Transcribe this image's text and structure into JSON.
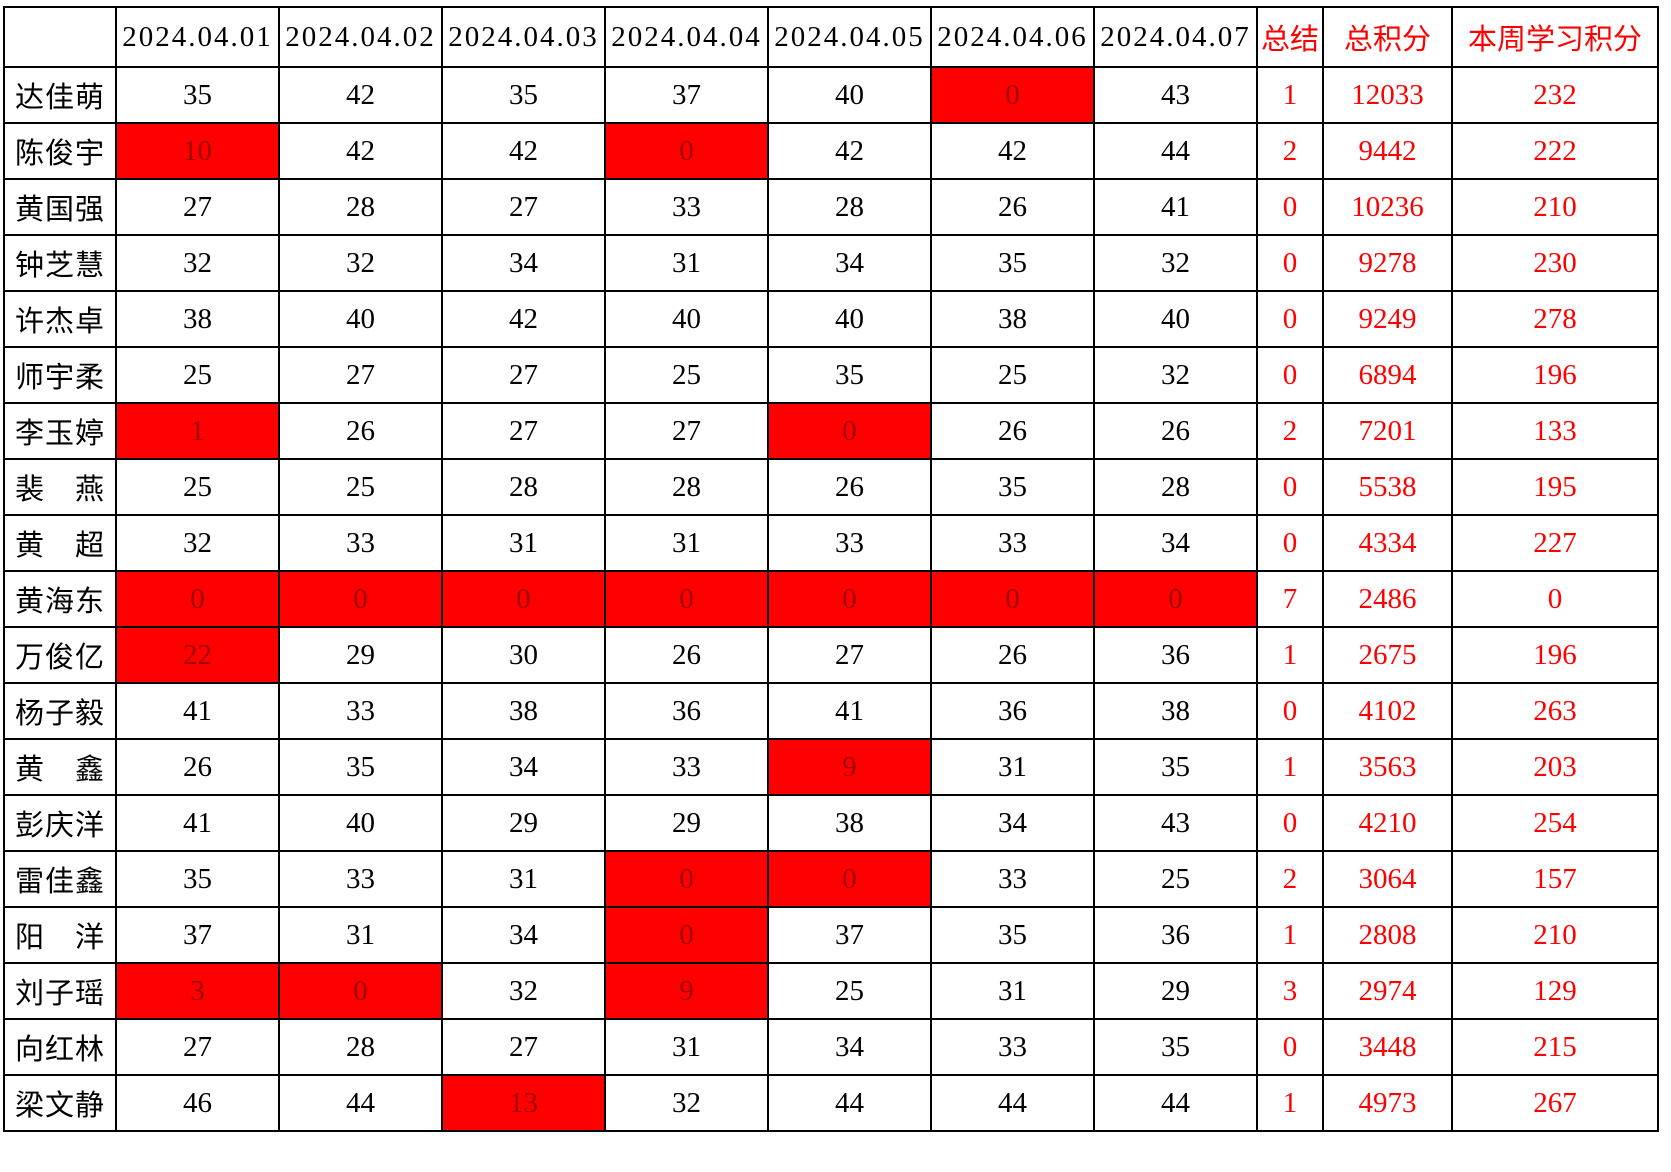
{
  "colors": {
    "accent_text": "#ff0000",
    "highlight_bg": "#ff0000",
    "highlight_text": "#a00000",
    "border": "#000000",
    "text": "#000000"
  },
  "table": {
    "header": {
      "corner": "",
      "date_cols": [
        "2024.04.01",
        "2024.04.02",
        "2024.04.03",
        "2024.04.04",
        "2024.04.05",
        "2024.04.06",
        "2024.04.07"
      ],
      "summary_col": "总结",
      "total_col": "总积分",
      "week_col": "本周学习积分"
    },
    "rows": [
      {
        "name": "达佳萌",
        "days": [
          {
            "v": "35",
            "red": false
          },
          {
            "v": "42",
            "red": false
          },
          {
            "v": "35",
            "red": false
          },
          {
            "v": "37",
            "red": false
          },
          {
            "v": "40",
            "red": false
          },
          {
            "v": "0",
            "red": true
          },
          {
            "v": "43",
            "red": false
          }
        ],
        "summary": "1",
        "total": "12033",
        "week": "232"
      },
      {
        "name": "陈俊宇",
        "days": [
          {
            "v": "10",
            "red": true
          },
          {
            "v": "42",
            "red": false
          },
          {
            "v": "42",
            "red": false
          },
          {
            "v": "0",
            "red": true
          },
          {
            "v": "42",
            "red": false
          },
          {
            "v": "42",
            "red": false
          },
          {
            "v": "44",
            "red": false
          }
        ],
        "summary": "2",
        "total": "9442",
        "week": "222"
      },
      {
        "name": "黄国强",
        "days": [
          {
            "v": "27",
            "red": false
          },
          {
            "v": "28",
            "red": false
          },
          {
            "v": "27",
            "red": false
          },
          {
            "v": "33",
            "red": false
          },
          {
            "v": "28",
            "red": false
          },
          {
            "v": "26",
            "red": false
          },
          {
            "v": "41",
            "red": false
          }
        ],
        "summary": "0",
        "total": "10236",
        "week": "210"
      },
      {
        "name": "钟芝慧",
        "days": [
          {
            "v": "32",
            "red": false
          },
          {
            "v": "32",
            "red": false
          },
          {
            "v": "34",
            "red": false
          },
          {
            "v": "31",
            "red": false
          },
          {
            "v": "34",
            "red": false
          },
          {
            "v": "35",
            "red": false
          },
          {
            "v": "32",
            "red": false
          }
        ],
        "summary": "0",
        "total": "9278",
        "week": "230"
      },
      {
        "name": "许杰卓",
        "days": [
          {
            "v": "38",
            "red": false
          },
          {
            "v": "40",
            "red": false
          },
          {
            "v": "42",
            "red": false
          },
          {
            "v": "40",
            "red": false
          },
          {
            "v": "40",
            "red": false
          },
          {
            "v": "38",
            "red": false
          },
          {
            "v": "40",
            "red": false
          }
        ],
        "summary": "0",
        "total": "9249",
        "week": "278"
      },
      {
        "name": "师宇柔",
        "days": [
          {
            "v": "25",
            "red": false
          },
          {
            "v": "27",
            "red": false
          },
          {
            "v": "27",
            "red": false
          },
          {
            "v": "25",
            "red": false
          },
          {
            "v": "35",
            "red": false
          },
          {
            "v": "25",
            "red": false
          },
          {
            "v": "32",
            "red": false
          }
        ],
        "summary": "0",
        "total": "6894",
        "week": "196"
      },
      {
        "name": "李玉婷",
        "days": [
          {
            "v": "1",
            "red": true
          },
          {
            "v": "26",
            "red": false
          },
          {
            "v": "27",
            "red": false
          },
          {
            "v": "27",
            "red": false
          },
          {
            "v": "0",
            "red": true
          },
          {
            "v": "26",
            "red": false
          },
          {
            "v": "26",
            "red": false
          }
        ],
        "summary": "2",
        "total": "7201",
        "week": "133"
      },
      {
        "name": "裴　燕",
        "days": [
          {
            "v": "25",
            "red": false
          },
          {
            "v": "25",
            "red": false
          },
          {
            "v": "28",
            "red": false
          },
          {
            "v": "28",
            "red": false
          },
          {
            "v": "26",
            "red": false
          },
          {
            "v": "35",
            "red": false
          },
          {
            "v": "28",
            "red": false
          }
        ],
        "summary": "0",
        "total": "5538",
        "week": "195"
      },
      {
        "name": "黄　超",
        "days": [
          {
            "v": "32",
            "red": false
          },
          {
            "v": "33",
            "red": false
          },
          {
            "v": "31",
            "red": false
          },
          {
            "v": "31",
            "red": false
          },
          {
            "v": "33",
            "red": false
          },
          {
            "v": "33",
            "red": false
          },
          {
            "v": "34",
            "red": false
          }
        ],
        "summary": "0",
        "total": "4334",
        "week": "227"
      },
      {
        "name": "黄海东",
        "days": [
          {
            "v": "0",
            "red": true
          },
          {
            "v": "0",
            "red": true
          },
          {
            "v": "0",
            "red": true
          },
          {
            "v": "0",
            "red": true
          },
          {
            "v": "0",
            "red": true
          },
          {
            "v": "0",
            "red": true
          },
          {
            "v": "0",
            "red": true
          }
        ],
        "summary": "7",
        "total": "2486",
        "week": "0"
      },
      {
        "name": "万俊亿",
        "days": [
          {
            "v": "22",
            "red": true
          },
          {
            "v": "29",
            "red": false
          },
          {
            "v": "30",
            "red": false
          },
          {
            "v": "26",
            "red": false
          },
          {
            "v": "27",
            "red": false
          },
          {
            "v": "26",
            "red": false
          },
          {
            "v": "36",
            "red": false
          }
        ],
        "summary": "1",
        "total": "2675",
        "week": "196"
      },
      {
        "name": "杨子毅",
        "days": [
          {
            "v": "41",
            "red": false
          },
          {
            "v": "33",
            "red": false
          },
          {
            "v": "38",
            "red": false
          },
          {
            "v": "36",
            "red": false
          },
          {
            "v": "41",
            "red": false
          },
          {
            "v": "36",
            "red": false
          },
          {
            "v": "38",
            "red": false
          }
        ],
        "summary": "0",
        "total": "4102",
        "week": "263"
      },
      {
        "name": "黄　鑫",
        "days": [
          {
            "v": "26",
            "red": false
          },
          {
            "v": "35",
            "red": false
          },
          {
            "v": "34",
            "red": false
          },
          {
            "v": "33",
            "red": false
          },
          {
            "v": "9",
            "red": true
          },
          {
            "v": "31",
            "red": false
          },
          {
            "v": "35",
            "red": false
          }
        ],
        "summary": "1",
        "total": "3563",
        "week": "203"
      },
      {
        "name": "彭庆洋",
        "days": [
          {
            "v": "41",
            "red": false
          },
          {
            "v": "40",
            "red": false
          },
          {
            "v": "29",
            "red": false
          },
          {
            "v": "29",
            "red": false
          },
          {
            "v": "38",
            "red": false
          },
          {
            "v": "34",
            "red": false
          },
          {
            "v": "43",
            "red": false
          }
        ],
        "summary": "0",
        "total": "4210",
        "week": "254"
      },
      {
        "name": "雷佳鑫",
        "days": [
          {
            "v": "35",
            "red": false
          },
          {
            "v": "33",
            "red": false
          },
          {
            "v": "31",
            "red": false
          },
          {
            "v": "0",
            "red": true
          },
          {
            "v": "0",
            "red": true
          },
          {
            "v": "33",
            "red": false
          },
          {
            "v": "25",
            "red": false
          }
        ],
        "summary": "2",
        "total": "3064",
        "week": "157"
      },
      {
        "name": "阳　洋",
        "days": [
          {
            "v": "37",
            "red": false
          },
          {
            "v": "31",
            "red": false
          },
          {
            "v": "34",
            "red": false
          },
          {
            "v": "0",
            "red": true
          },
          {
            "v": "37",
            "red": false
          },
          {
            "v": "35",
            "red": false
          },
          {
            "v": "36",
            "red": false
          }
        ],
        "summary": "1",
        "total": "2808",
        "week": "210"
      },
      {
        "name": "刘子瑶",
        "days": [
          {
            "v": "3",
            "red": true
          },
          {
            "v": "0",
            "red": true
          },
          {
            "v": "32",
            "red": false
          },
          {
            "v": "9",
            "red": true
          },
          {
            "v": "25",
            "red": false
          },
          {
            "v": "31",
            "red": false
          },
          {
            "v": "29",
            "red": false
          }
        ],
        "summary": "3",
        "total": "2974",
        "week": "129"
      },
      {
        "name": "向红林",
        "days": [
          {
            "v": "27",
            "red": false
          },
          {
            "v": "28",
            "red": false
          },
          {
            "v": "27",
            "red": false
          },
          {
            "v": "31",
            "red": false
          },
          {
            "v": "34",
            "red": false
          },
          {
            "v": "33",
            "red": false
          },
          {
            "v": "35",
            "red": false
          }
        ],
        "summary": "0",
        "total": "3448",
        "week": "215"
      },
      {
        "name": "梁文静",
        "days": [
          {
            "v": "46",
            "red": false
          },
          {
            "v": "44",
            "red": false
          },
          {
            "v": "13",
            "red": true
          },
          {
            "v": "32",
            "red": false
          },
          {
            "v": "44",
            "red": false
          },
          {
            "v": "44",
            "red": false
          },
          {
            "v": "44",
            "red": false
          }
        ],
        "summary": "1",
        "total": "4973",
        "week": "267"
      }
    ]
  }
}
